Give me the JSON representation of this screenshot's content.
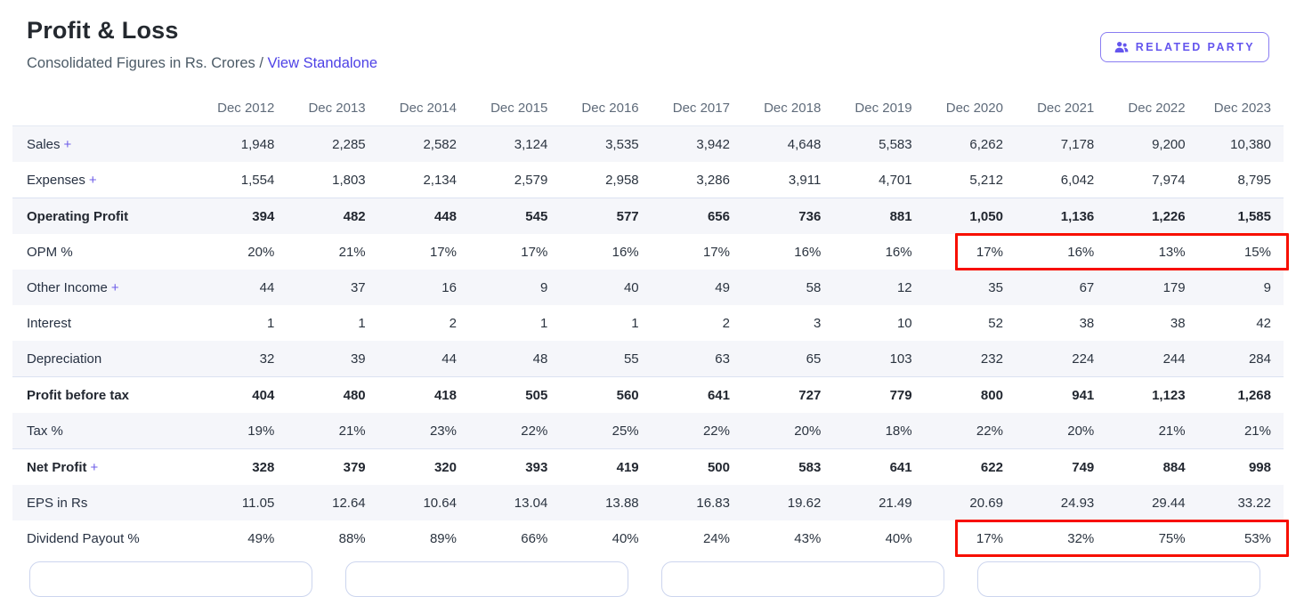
{
  "header": {
    "title": "Profit & Loss",
    "subtitle": "Consolidated Figures in Rs. Crores /",
    "subtitle_link": "View Standalone",
    "related_party_button": "RELATED PARTY"
  },
  "table": {
    "columns": [
      "Dec 2012",
      "Dec 2013",
      "Dec 2014",
      "Dec 2015",
      "Dec 2016",
      "Dec 2017",
      "Dec 2018",
      "Dec 2019",
      "Dec 2020",
      "Dec 2021",
      "Dec 2022",
      "Dec 2023"
    ],
    "rows": [
      {
        "label": "Sales",
        "suffix": "+",
        "bold": false,
        "values": [
          "1,948",
          "2,285",
          "2,582",
          "3,124",
          "3,535",
          "3,942",
          "4,648",
          "5,583",
          "6,262",
          "7,178",
          "9,200",
          "10,380"
        ]
      },
      {
        "label": "Expenses",
        "suffix": "+",
        "bold": false,
        "values": [
          "1,554",
          "1,803",
          "2,134",
          "2,579",
          "2,958",
          "3,286",
          "3,911",
          "4,701",
          "5,212",
          "6,042",
          "7,974",
          "8,795"
        ]
      },
      {
        "label": "Operating Profit",
        "bold": true,
        "values": [
          "394",
          "482",
          "448",
          "545",
          "577",
          "656",
          "736",
          "881",
          "1,050",
          "1,136",
          "1,226",
          "1,585"
        ]
      },
      {
        "label": "OPM %",
        "bold": false,
        "values": [
          "20%",
          "21%",
          "17%",
          "17%",
          "16%",
          "17%",
          "16%",
          "16%",
          "17%",
          "16%",
          "13%",
          "15%"
        ]
      },
      {
        "label": "Other Income",
        "suffix": "+",
        "bold": false,
        "values": [
          "44",
          "37",
          "16",
          "9",
          "40",
          "49",
          "58",
          "12",
          "35",
          "67",
          "179",
          "9"
        ]
      },
      {
        "label": "Interest",
        "bold": false,
        "values": [
          "1",
          "1",
          "2",
          "1",
          "1",
          "2",
          "3",
          "10",
          "52",
          "38",
          "38",
          "42"
        ]
      },
      {
        "label": "Depreciation",
        "bold": false,
        "values": [
          "32",
          "39",
          "44",
          "48",
          "55",
          "63",
          "65",
          "103",
          "232",
          "224",
          "244",
          "284"
        ]
      },
      {
        "label": "Profit before tax",
        "bold": true,
        "values": [
          "404",
          "480",
          "418",
          "505",
          "560",
          "641",
          "727",
          "779",
          "800",
          "941",
          "1,123",
          "1,268"
        ]
      },
      {
        "label": "Tax %",
        "bold": false,
        "values": [
          "19%",
          "21%",
          "23%",
          "22%",
          "25%",
          "22%",
          "20%",
          "18%",
          "22%",
          "20%",
          "21%",
          "21%"
        ]
      },
      {
        "label": "Net Profit",
        "suffix": "+",
        "bold": true,
        "values": [
          "328",
          "379",
          "320",
          "393",
          "419",
          "500",
          "583",
          "641",
          "622",
          "749",
          "884",
          "998"
        ]
      },
      {
        "label": "EPS in Rs",
        "bold": false,
        "values": [
          "11.05",
          "12.64",
          "10.64",
          "13.04",
          "13.88",
          "16.83",
          "19.62",
          "21.49",
          "20.69",
          "24.93",
          "29.44",
          "33.22"
        ]
      },
      {
        "label": "Dividend Payout %",
        "bold": false,
        "values": [
          "49%",
          "88%",
          "89%",
          "66%",
          "40%",
          "24%",
          "43%",
          "40%",
          "17%",
          "32%",
          "75%",
          "53%"
        ]
      }
    ],
    "highlights": [
      {
        "row": 3,
        "col_start": 8,
        "col_end": 11,
        "color": "#f70f00"
      },
      {
        "row": 11,
        "col_start": 8,
        "col_end": 11,
        "color": "#f70f00"
      }
    ]
  },
  "footer": {
    "card_count": 4
  },
  "colors": {
    "accent_purple": "#6455ee",
    "link": "#4e42e6",
    "stripe": "#f5f6fa",
    "divider": "#dbe2f1",
    "annotation_red": "#f70f00"
  }
}
